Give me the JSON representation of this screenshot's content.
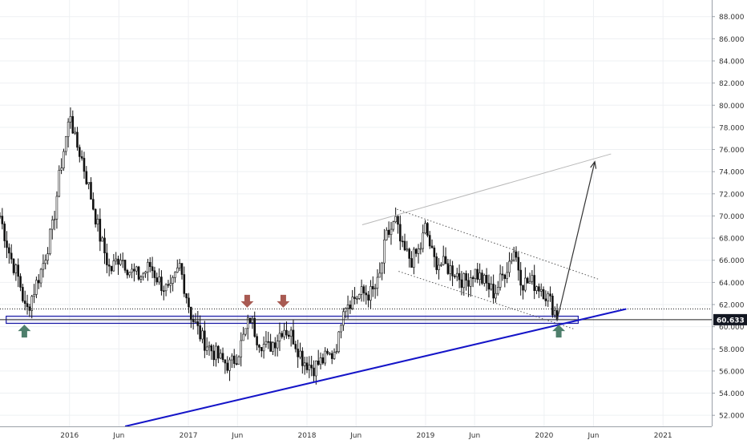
{
  "chart_data": {
    "type": "candlestick",
    "title": "",
    "xlabel": "",
    "ylabel": "",
    "ylim": [
      51.0,
      89.5
    ],
    "xlim": [
      "2015-06-01",
      "2021-05-31"
    ],
    "grid": true,
    "y_ticks": [
      "52.000",
      "54.000",
      "56.000",
      "58.000",
      "60.000",
      "62.000",
      "64.000",
      "66.000",
      "68.000",
      "70.000",
      "72.000",
      "74.000",
      "76.000",
      "78.000",
      "80.000",
      "82.000",
      "84.000",
      "86.000",
      "88.000"
    ],
    "x_ticks": [
      {
        "date": "2016-01-01",
        "label": "2016"
      },
      {
        "date": "2016-06-01",
        "label": "Jun"
      },
      {
        "date": "2017-01-01",
        "label": "2017"
      },
      {
        "date": "2017-06-01",
        "label": "Jun"
      },
      {
        "date": "2018-01-01",
        "label": "2018"
      },
      {
        "date": "2018-06-01",
        "label": "Jun"
      },
      {
        "date": "2019-01-01",
        "label": "2019"
      },
      {
        "date": "2019-06-01",
        "label": "Jun"
      },
      {
        "date": "2020-01-01",
        "label": "2020"
      },
      {
        "date": "2020-06-01",
        "label": "Jun"
      },
      {
        "date": "2021-01-01",
        "label": "2021"
      }
    ],
    "price_path": [
      [
        "2015-06-01",
        70.0
      ],
      [
        "2015-07-01",
        66.5
      ],
      [
        "2015-08-01",
        64.0
      ],
      [
        "2015-08-20",
        61.2
      ],
      [
        "2015-09-10",
        63.0
      ],
      [
        "2015-10-10",
        65.5
      ],
      [
        "2015-11-10",
        69.0
      ],
      [
        "2015-12-05",
        74.5
      ],
      [
        "2016-01-05",
        79.5
      ],
      [
        "2016-01-15",
        77.0
      ],
      [
        "2016-02-05",
        75.5
      ],
      [
        "2016-03-05",
        72.0
      ],
      [
        "2016-04-05",
        68.0
      ],
      [
        "2016-05-05",
        65.0
      ],
      [
        "2016-06-05",
        66.5
      ],
      [
        "2016-07-05",
        65.0
      ],
      [
        "2016-08-05",
        64.5
      ],
      [
        "2016-09-05",
        65.5
      ],
      [
        "2016-10-05",
        64.0
      ],
      [
        "2016-11-05",
        63.0
      ],
      [
        "2016-12-05",
        65.5
      ],
      [
        "2016-12-25",
        63.0
      ],
      [
        "2017-01-10",
        61.0
      ],
      [
        "2017-02-10",
        59.0
      ],
      [
        "2017-03-10",
        58.0
      ],
      [
        "2017-04-10",
        57.0
      ],
      [
        "2017-05-10",
        56.5
      ],
      [
        "2017-06-01",
        57.5
      ],
      [
        "2017-06-25",
        59.5
      ],
      [
        "2017-07-10",
        60.8
      ],
      [
        "2017-08-01",
        59.0
      ],
      [
        "2017-09-01",
        58.0
      ],
      [
        "2017-10-01",
        59.0
      ],
      [
        "2017-10-20",
        60.0
      ],
      [
        "2017-11-20",
        59.0
      ],
      [
        "2017-12-20",
        57.0
      ],
      [
        "2018-01-20",
        56.3
      ],
      [
        "2018-02-20",
        57.0
      ],
      [
        "2018-03-20",
        57.5
      ],
      [
        "2018-04-10",
        59.0
      ],
      [
        "2018-04-20",
        62.0
      ],
      [
        "2018-05-20",
        62.5
      ],
      [
        "2018-06-20",
        63.0
      ],
      [
        "2018-07-20",
        63.0
      ],
      [
        "2018-08-10",
        64.0
      ],
      [
        "2018-09-01",
        68.0
      ],
      [
        "2018-10-01",
        69.5
      ],
      [
        "2018-10-20",
        67.0
      ],
      [
        "2018-11-20",
        66.0
      ],
      [
        "2018-12-15",
        67.0
      ],
      [
        "2019-01-01",
        69.0
      ],
      [
        "2019-01-25",
        66.0
      ],
      [
        "2019-03-01",
        65.5
      ],
      [
        "2019-04-01",
        65.0
      ],
      [
        "2019-05-01",
        64.0
      ],
      [
        "2019-06-01",
        65.0
      ],
      [
        "2019-07-01",
        64.0
      ],
      [
        "2019-08-01",
        63.0
      ],
      [
        "2019-09-10",
        65.5
      ],
      [
        "2019-10-01",
        67.0
      ],
      [
        "2019-10-25",
        64.0
      ],
      [
        "2019-11-25",
        64.0
      ],
      [
        "2019-12-25",
        63.5
      ],
      [
        "2020-01-15",
        62.5
      ],
      [
        "2020-02-10",
        61.0
      ]
    ],
    "current_price": {
      "value": 60.633,
      "label": "60.633"
    },
    "horizontal_lines": [
      {
        "y": 61.6,
        "style": "dotted",
        "color": "#222222"
      },
      {
        "y": 60.633,
        "style": "solid",
        "color": "#222222"
      }
    ],
    "zones": [
      {
        "x0": "2015-06-20",
        "x1": "2020-04-15",
        "y0": 60.3,
        "y1": 60.95,
        "color": "#1a1aa6"
      }
    ],
    "trendlines": [
      {
        "x0": "2016-06-20",
        "y0": 51.0,
        "x1": "2020-09-10",
        "y1": 61.6,
        "color": "#1515c8",
        "style": "solid",
        "width": 2
      },
      {
        "x0": "2018-06-20",
        "y0": 69.2,
        "x1": "2020-07-25",
        "y1": 75.6,
        "color": "#b8b8b8",
        "style": "solid",
        "width": 1
      },
      {
        "x0": "2018-10-05",
        "y0": 70.6,
        "x1": "2020-06-15",
        "y1": 64.3,
        "color": "#555555",
        "style": "dotted",
        "width": 1
      },
      {
        "x0": "2018-10-10",
        "y0": 65.0,
        "x1": "2020-04-01",
        "y1": 59.8,
        "color": "#555555",
        "style": "dotted",
        "width": 1
      }
    ],
    "projection_arrow": {
      "x0": "2020-02-10",
      "y0": 60.6,
      "x1": "2020-06-05",
      "y1": 74.9,
      "color": "#333333"
    },
    "markers": [
      {
        "type": "arrow-up",
        "date": "2015-08-15",
        "y": 59.6,
        "color": "#4e7f6c"
      },
      {
        "type": "arrow-up",
        "date": "2020-02-15",
        "y": 59.6,
        "color": "#4e7f6c"
      },
      {
        "type": "arrow-down",
        "date": "2017-07-01",
        "y": 62.3,
        "color": "#a85a52"
      },
      {
        "type": "arrow-down",
        "date": "2017-10-20",
        "y": 62.3,
        "color": "#a85a52"
      }
    ]
  }
}
